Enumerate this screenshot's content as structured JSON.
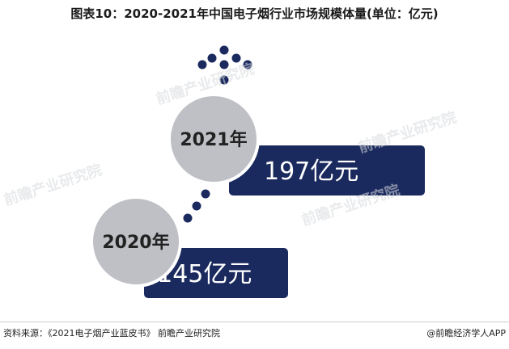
{
  "title": "图表10：2020-2021年中国电子烟行业市场规模体量(单位：亿元)",
  "chart_data": {
    "type": "bar",
    "categories": [
      "2020年",
      "2021年"
    ],
    "values": [
      145,
      197
    ],
    "value_labels": [
      "145亿元",
      "197亿元"
    ],
    "unit": "亿元",
    "title": "图表10：2020-2021年中国电子烟行业市场规模体量(单位：亿元)"
  },
  "watermarks": [
    "前瞻产业研究院",
    "前瞻产业研究院",
    "前瞻产业研究院",
    "前瞻产业研究院"
  ],
  "footer": {
    "source": "资料来源：《2021电子烟产业蓝皮书》 前瞻产业研究院",
    "brand": "@前瞻经济学人APP"
  },
  "colors": {
    "navy": "#1b2a5e",
    "circle": "#bfc0c6",
    "circle_stroke": "#ffffff",
    "year_text": "#222222"
  }
}
